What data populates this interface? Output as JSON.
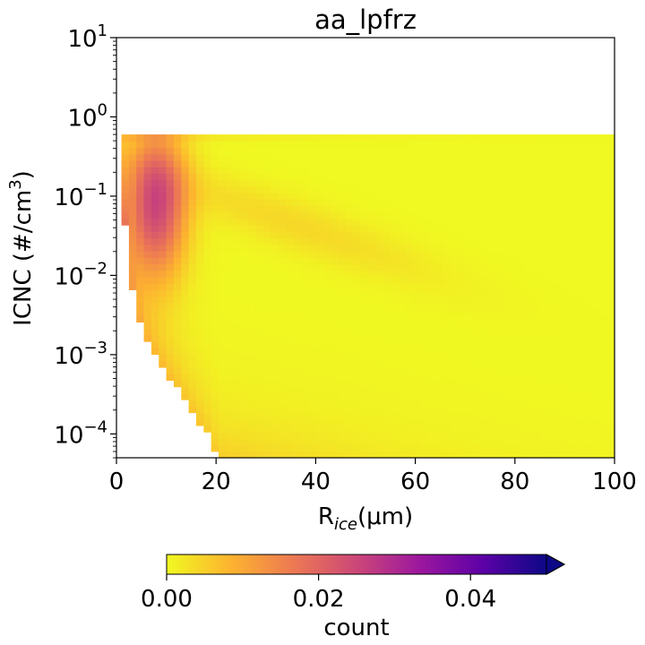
{
  "chart_data": {
    "type": "heatmap",
    "title": "aa_lpfrz",
    "xlabel": {
      "base": "R",
      "sub": "ice",
      "rest": "(μm)"
    },
    "ylabel": {
      "base": "ICNC (#/cm",
      "sup": "3",
      "close": ")"
    },
    "xlim": [
      0,
      100
    ],
    "ylim": [
      5e-05,
      10
    ],
    "yscale": "log",
    "x_ticks": [
      0,
      20,
      40,
      60,
      80,
      100
    ],
    "x_tick_labels": [
      "0",
      "20",
      "40",
      "60",
      "80",
      "100"
    ],
    "y_ticks": [
      0.0001,
      0.001,
      0.01,
      0.1,
      1,
      10
    ],
    "y_tick_labels": [
      {
        "base": "10",
        "exp": "−4"
      },
      {
        "base": "10",
        "exp": "−3"
      },
      {
        "base": "10",
        "exp": "−2"
      },
      {
        "base": "10",
        "exp": "−1"
      },
      {
        "base": "10",
        "exp": "0"
      },
      {
        "base": "10",
        "exp": "1"
      }
    ],
    "data_extent": {
      "x": [
        1,
        100
      ],
      "y": [
        5e-05,
        0.6
      ]
    },
    "bins": {
      "x": 66,
      "y": 50
    },
    "lower_edge_points": [
      [
        1,
        0.6
      ],
      [
        2,
        0.02
      ],
      [
        3,
        0.008
      ],
      [
        4,
        0.004
      ],
      [
        5,
        0.0024
      ],
      [
        6,
        0.0016
      ],
      [
        8,
        0.00095
      ],
      [
        10,
        0.0006
      ],
      [
        12,
        0.0004
      ],
      [
        14,
        0.00025
      ],
      [
        16,
        0.00016
      ],
      [
        18,
        0.00011
      ],
      [
        19.5,
        7e-05
      ],
      [
        21,
        5e-05
      ]
    ],
    "ridge": {
      "x_at_peak": 8,
      "y_at_peak": 0.08,
      "peak_count": 0.025
    },
    "colorbar": {
      "label": "count",
      "colormap": "plasma_r",
      "vmin": 0,
      "vmax": 0.05,
      "extend": "max",
      "ticks": [
        0.0,
        0.02,
        0.04
      ],
      "tick_labels": [
        "0.00",
        "0.02",
        "0.04"
      ],
      "colors": [
        "#f0f921",
        "#fdb42f",
        "#ed7953",
        "#cc4778",
        "#9c179e",
        "#5c01a6",
        "#0d0887"
      ]
    }
  }
}
